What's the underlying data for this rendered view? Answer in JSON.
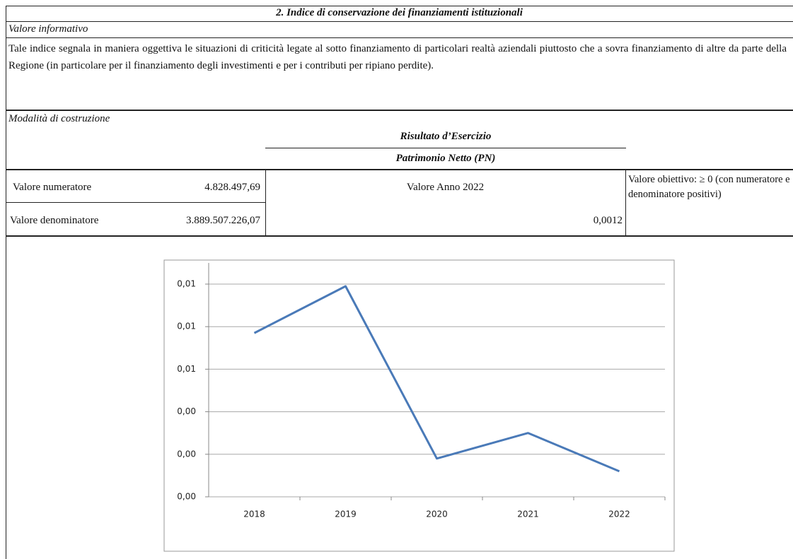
{
  "header": {
    "title": "2. Indice di conservazione dei finanziamenti istituzionali"
  },
  "valore_informativo": {
    "label": "Valore informativo",
    "text": "Tale indice segnala in maniera oggettiva le situazioni di criticità legate al sotto finanziamento di particolari realtà aziendali piuttosto che a sovra finanziamento di altre da parte della Regione (in particolare per il finanziamento degli investimenti e per i contributi per ripiano perdite)."
  },
  "modalita": {
    "label": "Modalità di costruzione",
    "numerator": "Risultato d’Esercizio",
    "denominator": "Patrimonio Netto (PN)"
  },
  "table": {
    "rows": [
      [
        "Valore numeratore",
        "4.828.497,69"
      ],
      [
        "Valore denominatore",
        "3.889.507.226,07"
      ]
    ],
    "year_label": "Valore Anno 2022",
    "year_value": "0,0012",
    "target": "Valore obiettivo: ≥ 0 (con numeratore e denominatore positivi)"
  },
  "chart_data": {
    "type": "line",
    "categories": [
      "2018",
      "2019",
      "2020",
      "2021",
      "2022"
    ],
    "values": [
      0.0077,
      0.0099,
      0.0018,
      0.003,
      0.0012
    ],
    "color": "#4a7ab8",
    "ylim": [
      0,
      0.01
    ],
    "yticks": [
      {
        "value": 0,
        "label": "0,00"
      },
      {
        "value": 0.002,
        "label": "0,00"
      },
      {
        "value": 0.004,
        "label": "0,00"
      },
      {
        "value": 0.006,
        "label": "0,01"
      },
      {
        "value": 0.008,
        "label": "0,01"
      },
      {
        "value": 0.01,
        "label": "0,01"
      }
    ],
    "grid": true
  }
}
